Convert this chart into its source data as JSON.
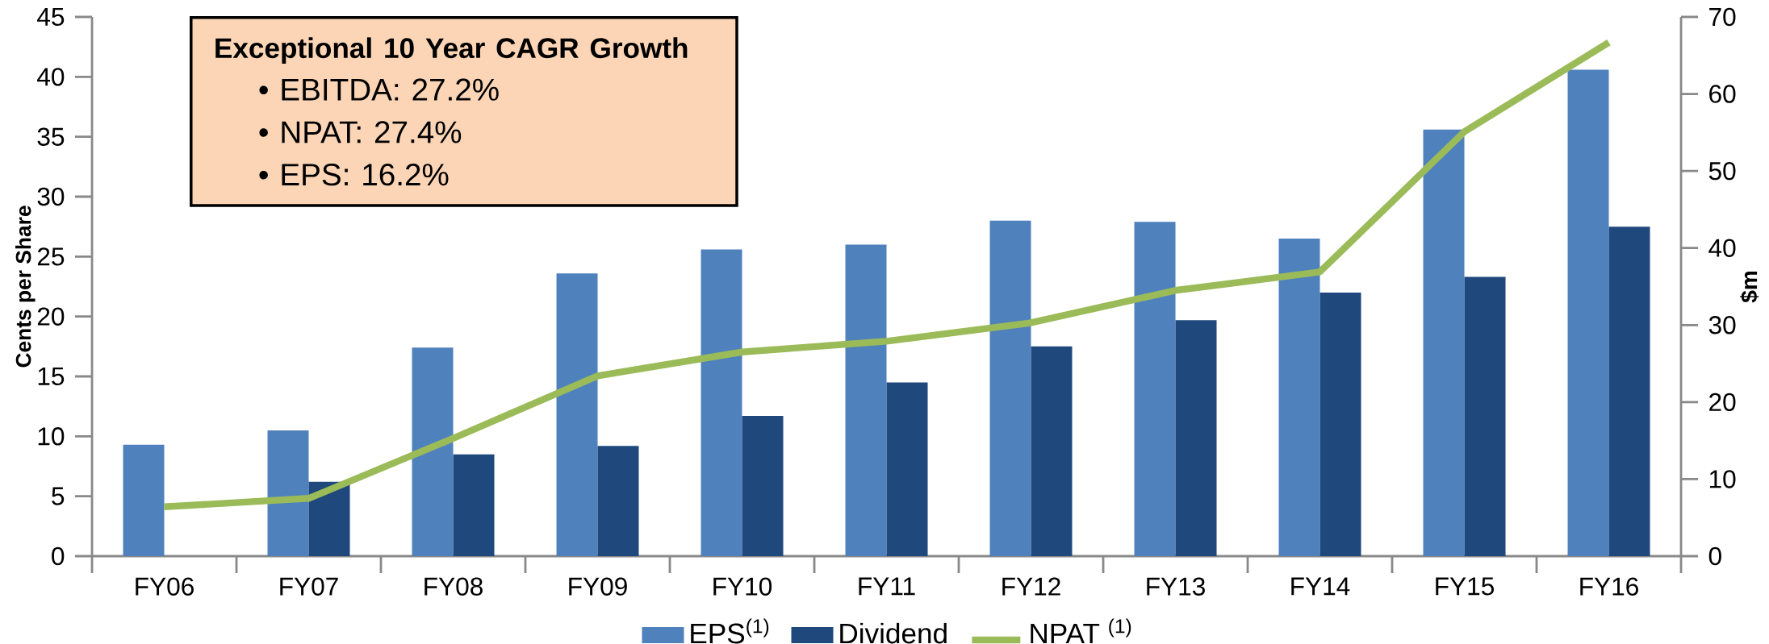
{
  "chart_data": {
    "type": "bar",
    "categories": [
      "FY06",
      "FY07",
      "FY08",
      "FY09",
      "FY10",
      "FY11",
      "FY12",
      "FY13",
      "FY14",
      "FY15",
      "FY16"
    ],
    "series": [
      {
        "name": "EPS$^{(1)}$",
        "color": "#4f81bd",
        "values": [
          9.3,
          10.5,
          17.4,
          23.6,
          25.6,
          26.0,
          28.0,
          27.9,
          26.5,
          35.6,
          40.6
        ]
      },
      {
        "name": "Dividend",
        "color": "#1f497d",
        "values": [
          null,
          6.2,
          8.5,
          9.2,
          11.7,
          14.5,
          17.5,
          19.7,
          22.0,
          23.3,
          27.5
        ]
      },
      {
        "name": "NPAT $^{(1)}$",
        "type": "line",
        "axis": "y2",
        "color": "#9bbb59",
        "marker": "none",
        "values": [
          6.4,
          7.5,
          15.3,
          23.4,
          26.5,
          27.9,
          30.3,
          34.5,
          36.9,
          55.1,
          66.7
        ]
      }
    ],
    "ylabel": "Cents per Share",
    "y2label": "$m",
    "ylim": [
      0,
      45
    ],
    "yticks": [
      0,
      5,
      10,
      15,
      20,
      25,
      30,
      35,
      40,
      45
    ],
    "y2lim": [
      0,
      70
    ],
    "y2ticks": [
      0,
      10,
      20,
      30,
      40,
      50,
      60,
      70
    ],
    "annotations": [
      "Exceptional 10 Year CAGR Growth",
      "•  EBITDA: 27.2%",
      "•  NPAT: 27.4%",
      "•  EPS: 16.2%"
    ],
    "legend": "bottom",
    "grid": false
  }
}
